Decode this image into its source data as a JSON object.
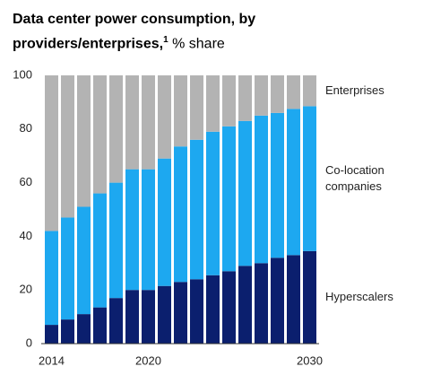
{
  "chart_data": {
    "type": "stacked_bar",
    "title": "Data center power consumption, by providers/enterprises,",
    "title_footnote": "1",
    "subtitle": "% share",
    "categories": [
      "2014",
      null,
      null,
      null,
      null,
      null,
      "2020",
      null,
      null,
      null,
      null,
      null,
      null,
      null,
      null,
      null,
      "2030"
    ],
    "series": [
      {
        "name": "Hyperscalers",
        "color": "#0b1f6e",
        "values": [
          7,
          9,
          11,
          13.5,
          17,
          20,
          20,
          21.5,
          23,
          24,
          25.5,
          27,
          29,
          30,
          32,
          33,
          34.5
        ]
      },
      {
        "name": "Co-location companies",
        "color": "#1da8f0",
        "values": [
          35,
          38,
          40,
          42.5,
          43,
          45,
          45,
          47.5,
          50.5,
          52,
          53.5,
          54,
          54,
          55,
          54,
          54.5,
          54
        ]
      },
      {
        "name": "Enterprises",
        "color": "#b3b3b3",
        "values": [
          58,
          53,
          49,
          44,
          40,
          35,
          35,
          31,
          26.5,
          24,
          21,
          19,
          17,
          15,
          14,
          12.5,
          11.5
        ]
      }
    ],
    "ylim": [
      0,
      100
    ],
    "yticks": [
      0,
      20,
      40,
      60,
      80,
      100
    ],
    "grid": false
  }
}
